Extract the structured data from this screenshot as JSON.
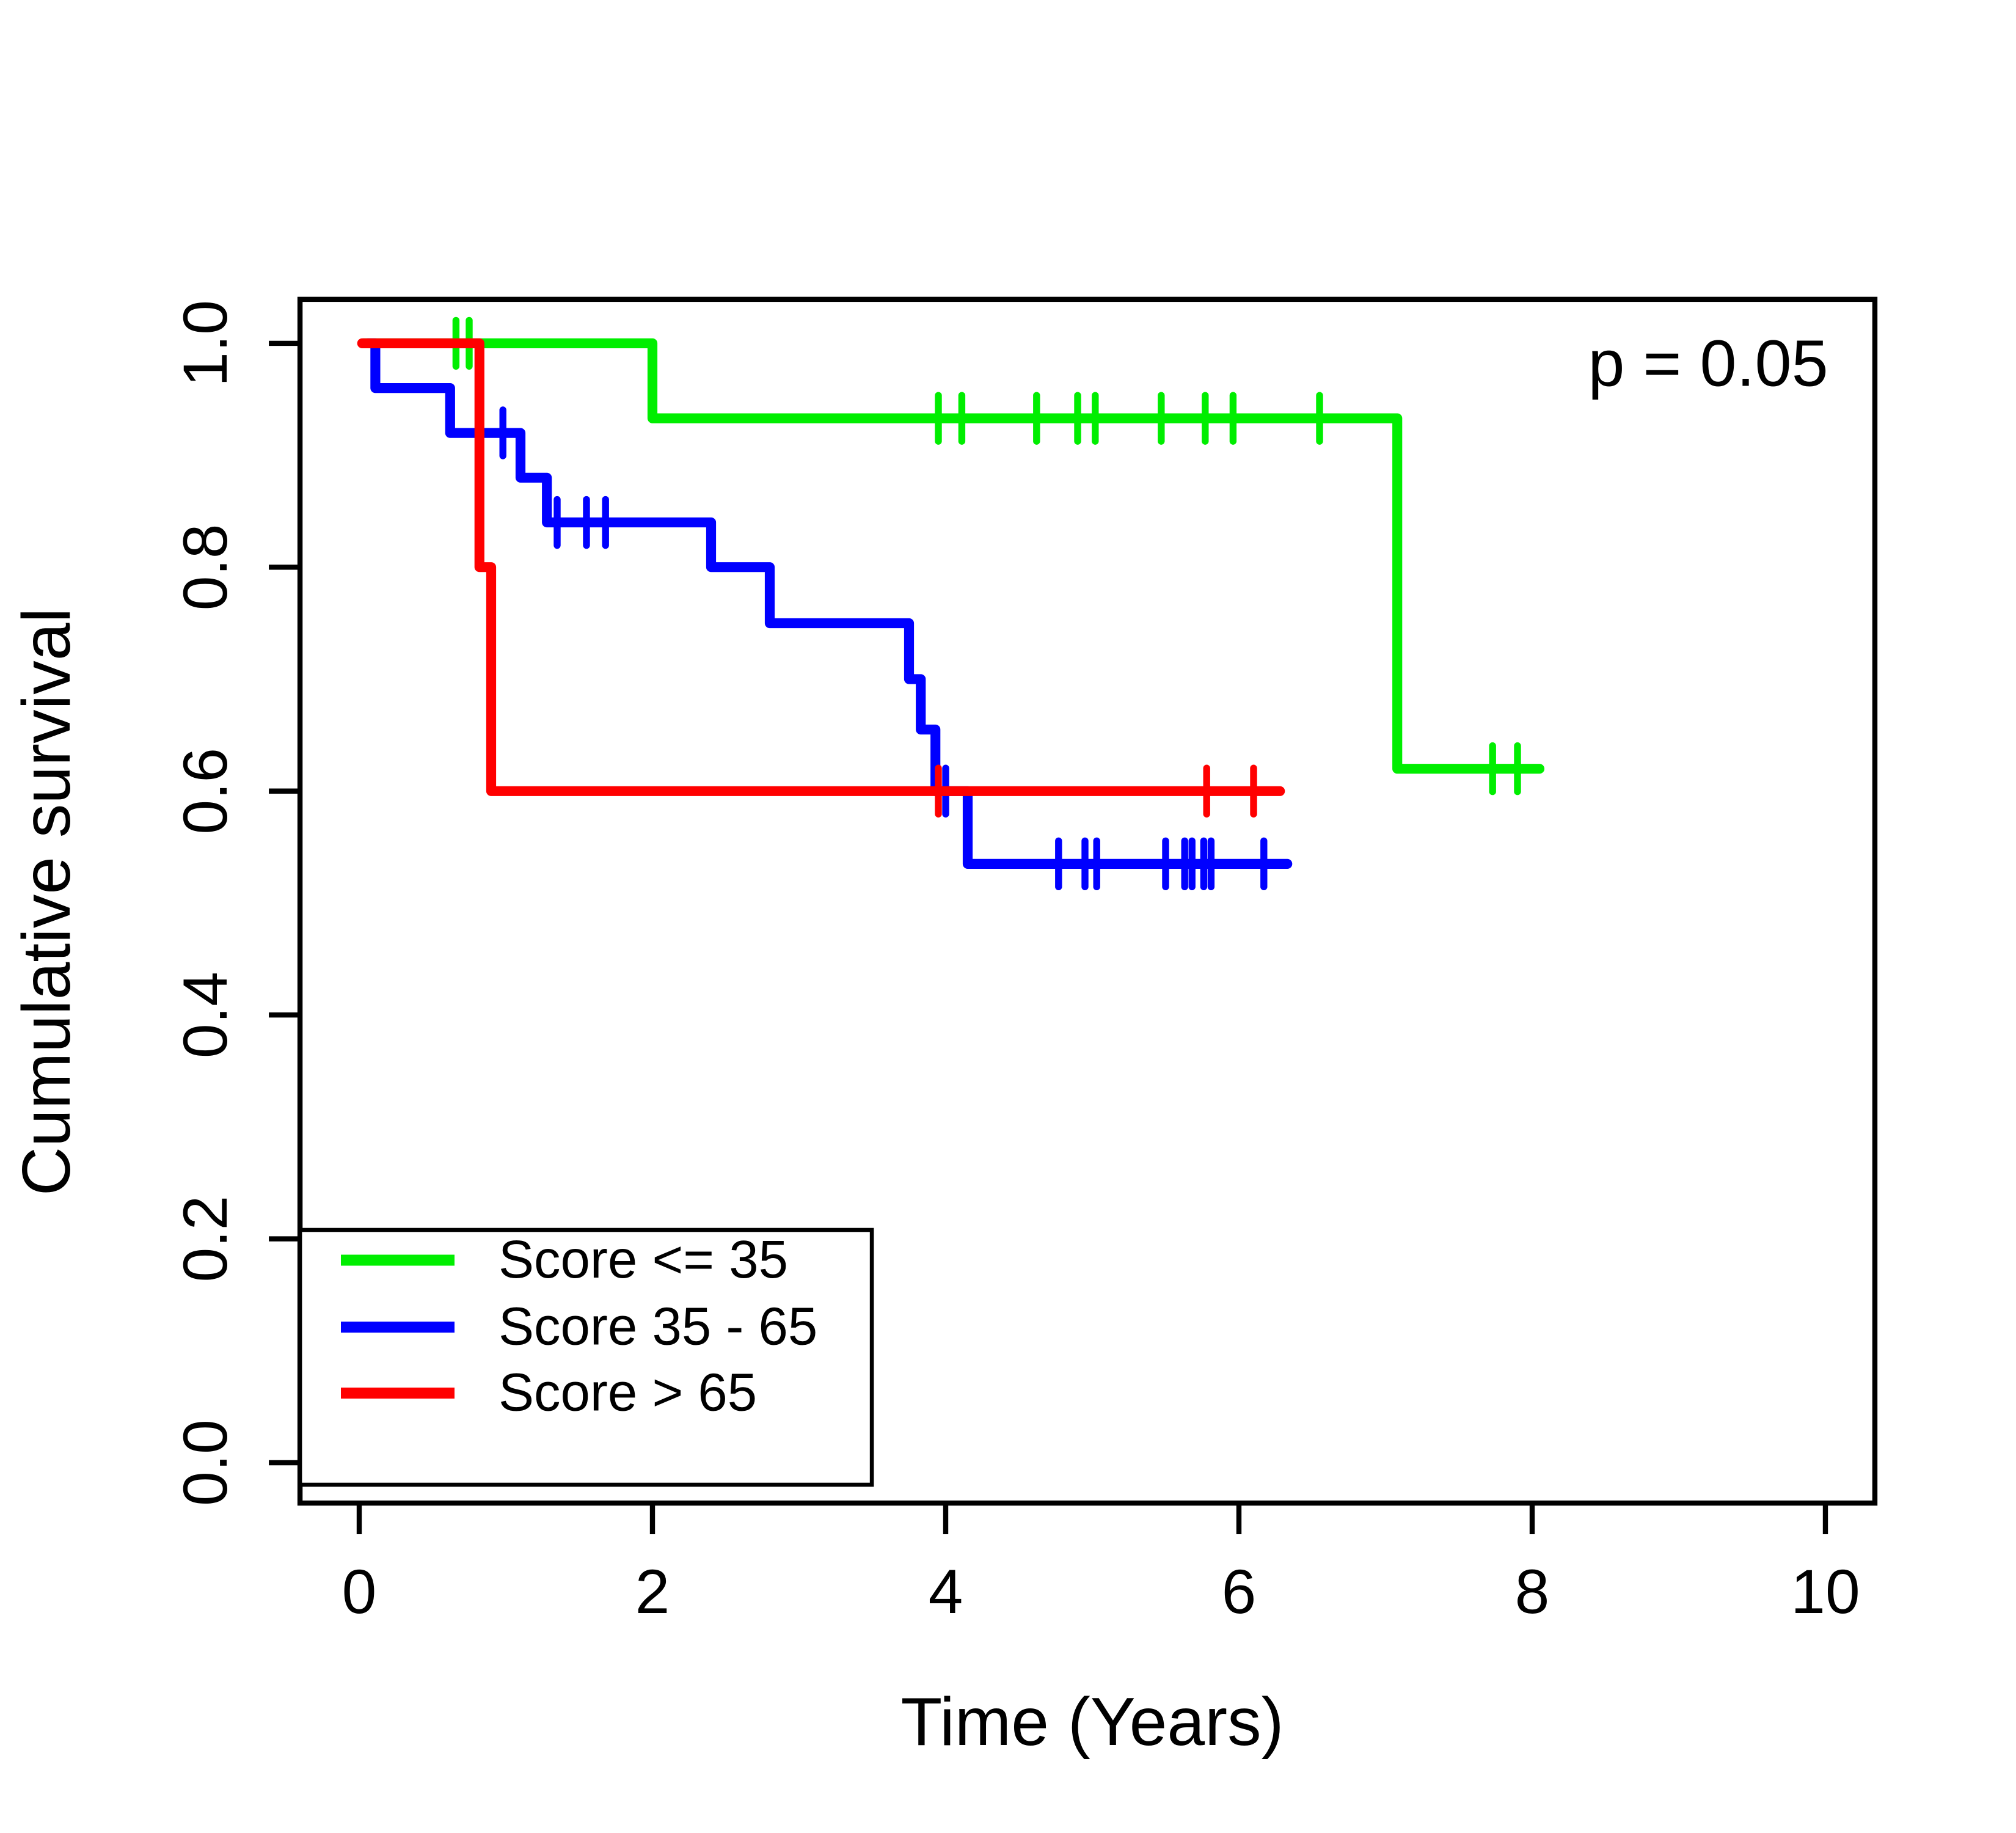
{
  "figure": {
    "ylabel": "Cumulative survival",
    "xlabel": "Time (Years)",
    "p_annotation": "p = 0.05"
  },
  "legend": {
    "items": [
      {
        "label": "Score <= 35",
        "color": "#00ee00"
      },
      {
        "label": "Score 35 - 65",
        "color": "#0000ff"
      },
      {
        "label": "Score > 65",
        "color": "#ff0000"
      }
    ]
  },
  "chart_data": {
    "type": "line",
    "subtype": "kaplan-meier-step-curves",
    "title": "",
    "xlabel": "Time (Years)",
    "ylabel": "Cumulative survival",
    "xlim": [
      0,
      10
    ],
    "ylim": [
      0.0,
      1.0
    ],
    "grid": false,
    "legend_position": "bottom-left",
    "xticks": [
      0,
      2,
      4,
      6,
      8,
      10
    ],
    "xtick_labels": [
      "0",
      "2",
      "4",
      "6",
      "8",
      "10"
    ],
    "yticks": [
      1.0,
      0.8,
      0.6,
      0.4,
      0.2,
      0.0
    ],
    "ytick_labels": [
      "1.0",
      "0.8",
      "0.6",
      "0.4",
      "0.2",
      "0.0"
    ],
    "annotation": {
      "text": "p = 0.05",
      "x": 9.2,
      "y": 0.962
    },
    "series": [
      {
        "name": "Score <= 35",
        "color": "#00ee00",
        "steps": [
          [
            0.03,
            1.0
          ],
          [
            2.0,
            1.0
          ],
          [
            2.0,
            0.933
          ],
          [
            7.08,
            0.933
          ],
          [
            7.08,
            0.62
          ],
          [
            8.05,
            0.62
          ]
        ],
        "censors": [
          [
            0.66,
            1.0
          ],
          [
            0.75,
            1.0
          ],
          [
            3.95,
            0.933
          ],
          [
            4.11,
            0.933
          ],
          [
            4.62,
            0.933
          ],
          [
            4.9,
            0.933
          ],
          [
            5.02,
            0.933
          ],
          [
            5.47,
            0.933
          ],
          [
            5.77,
            0.933
          ],
          [
            5.96,
            0.933
          ],
          [
            6.55,
            0.933
          ],
          [
            7.73,
            0.62
          ],
          [
            7.9,
            0.62
          ]
        ]
      },
      {
        "name": "Score 35 - 65",
        "color": "#0000ff",
        "steps": [
          [
            0.06,
            1.0
          ],
          [
            0.11,
            1.0
          ],
          [
            0.11,
            0.96
          ],
          [
            0.62,
            0.96
          ],
          [
            0.62,
            0.92
          ],
          [
            1.1,
            0.92
          ],
          [
            1.1,
            0.88
          ],
          [
            1.28,
            0.88
          ],
          [
            1.28,
            0.84
          ],
          [
            2.4,
            0.84
          ],
          [
            2.4,
            0.8
          ],
          [
            2.8,
            0.8
          ],
          [
            2.8,
            0.75
          ],
          [
            3.75,
            0.75
          ],
          [
            3.75,
            0.7
          ],
          [
            3.83,
            0.7
          ],
          [
            3.83,
            0.655
          ],
          [
            3.93,
            0.655
          ],
          [
            3.93,
            0.6
          ],
          [
            4.15,
            0.6
          ],
          [
            4.15,
            0.535
          ],
          [
            6.33,
            0.535
          ]
        ],
        "censors": [
          [
            0.98,
            0.92
          ],
          [
            1.35,
            0.84
          ],
          [
            1.55,
            0.84
          ],
          [
            1.68,
            0.84
          ],
          [
            4.0,
            0.6
          ],
          [
            4.77,
            0.535
          ],
          [
            4.95,
            0.535
          ],
          [
            5.03,
            0.535
          ],
          [
            5.5,
            0.535
          ],
          [
            5.63,
            0.535
          ],
          [
            5.68,
            0.535
          ],
          [
            5.76,
            0.535
          ],
          [
            5.81,
            0.535
          ],
          [
            6.17,
            0.535
          ]
        ]
      },
      {
        "name": "Score > 65",
        "color": "#ff0000",
        "steps": [
          [
            0.02,
            1.0
          ],
          [
            0.82,
            1.0
          ],
          [
            0.82,
            0.8
          ],
          [
            0.9,
            0.8
          ],
          [
            0.9,
            0.6
          ],
          [
            6.28,
            0.6
          ]
        ],
        "censors": [
          [
            3.95,
            0.6
          ],
          [
            5.78,
            0.6
          ],
          [
            6.1,
            0.6
          ]
        ]
      }
    ]
  }
}
